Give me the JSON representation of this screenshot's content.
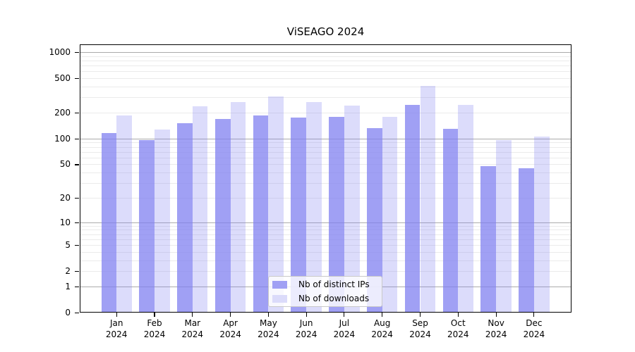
{
  "title": "ViSEAGO 2024",
  "legend": {
    "items": [
      {
        "label": "Nb of distinct IPs",
        "color": "#a0a0f4"
      },
      {
        "label": "Nb of downloads",
        "color": "#dbdbfa"
      }
    ]
  },
  "chart_data": {
    "type": "bar",
    "title": "ViSEAGO 2024",
    "categories": [
      "Jan",
      "Feb",
      "Mar",
      "Apr",
      "May",
      "Jun",
      "Jul",
      "Aug",
      "Sep",
      "Oct",
      "Nov",
      "Dec"
    ],
    "year_label": "2024",
    "series": [
      {
        "name": "Nb of distinct IPs",
        "color": "#a0a0f4",
        "fill": "rgba(128,128,240,0.75)",
        "values": [
          115,
          97,
          150,
          168,
          185,
          175,
          179,
          133,
          247,
          131,
          48,
          45
        ]
      },
      {
        "name": "Nb of downloads",
        "color": "#dbdbfa",
        "fill": "rgba(128,128,240,0.28)",
        "values": [
          187,
          127,
          237,
          266,
          308,
          263,
          241,
          180,
          405,
          248,
          96,
          106
        ]
      }
    ],
    "y_ticks": [
      0,
      1,
      2,
      5,
      10,
      20,
      50,
      100,
      200,
      500,
      1000
    ],
    "scale": "log1p",
    "ylim": [
      0,
      1230
    ],
    "grid": {
      "major_color": "#ababab",
      "minor_color": "#ebebeb",
      "major_at": [
        1,
        10,
        100,
        1000
      ]
    },
    "legend_position": "lower center inside plot",
    "xlabel": "",
    "ylabel": ""
  }
}
